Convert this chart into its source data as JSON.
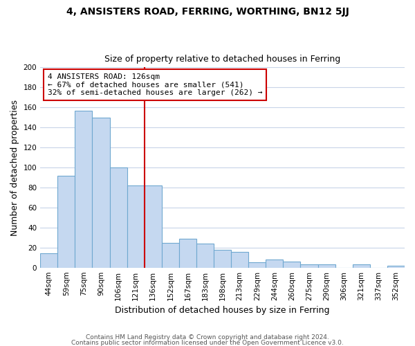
{
  "title": "4, ANSISTERS ROAD, FERRING, WORTHING, BN12 5JJ",
  "subtitle": "Size of property relative to detached houses in Ferring",
  "xlabel": "Distribution of detached houses by size in Ferring",
  "ylabel": "Number of detached properties",
  "categories": [
    "44sqm",
    "59sqm",
    "75sqm",
    "90sqm",
    "106sqm",
    "121sqm",
    "136sqm",
    "152sqm",
    "167sqm",
    "183sqm",
    "198sqm",
    "213sqm",
    "229sqm",
    "244sqm",
    "260sqm",
    "275sqm",
    "290sqm",
    "306sqm",
    "321sqm",
    "337sqm",
    "352sqm"
  ],
  "values": [
    14,
    92,
    157,
    150,
    100,
    82,
    82,
    25,
    29,
    24,
    18,
    16,
    5,
    8,
    6,
    3,
    3,
    0,
    3,
    0,
    2
  ],
  "bar_color": "#c5d8f0",
  "bar_edge_color": "#6fa8d0",
  "vline_index": 5,
  "vline_color": "#cc0000",
  "annotation_text": "4 ANSISTERS ROAD: 126sqm\n← 67% of detached houses are smaller (541)\n32% of semi-detached houses are larger (262) →",
  "annotation_box_color": "#ffffff",
  "annotation_box_edge": "#cc0000",
  "ylim": [
    0,
    200
  ],
  "yticks": [
    0,
    20,
    40,
    60,
    80,
    100,
    120,
    140,
    160,
    180,
    200
  ],
  "footnote1": "Contains HM Land Registry data © Crown copyright and database right 2024.",
  "footnote2": "Contains public sector information licensed under the Open Government Licence v3.0.",
  "background_color": "#ffffff",
  "grid_color": "#c8d4e8",
  "title_fontsize": 10,
  "subtitle_fontsize": 9,
  "ylabel_fontsize": 9,
  "xlabel_fontsize": 9,
  "tick_fontsize": 7.5,
  "annot_fontsize": 8,
  "footnote_fontsize": 6.5
}
